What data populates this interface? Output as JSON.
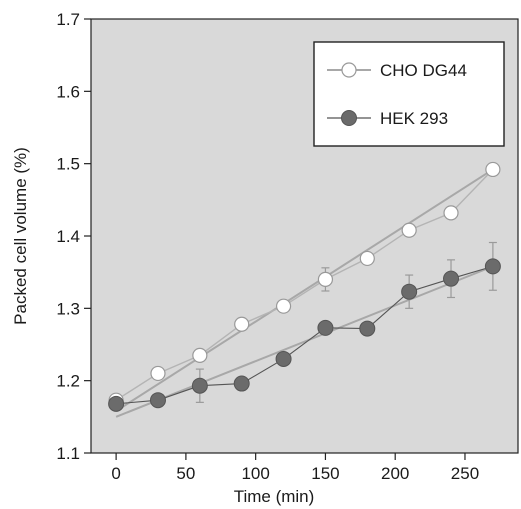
{
  "chart_data": {
    "type": "line",
    "xlabel": "Time (min)",
    "ylabel": "Packed cell volume (%)",
    "xlim": [
      -18,
      288
    ],
    "ylim": [
      1.1,
      1.7
    ],
    "x_ticks": [
      0,
      50,
      100,
      150,
      200,
      250
    ],
    "y_ticks": [
      1.1,
      1.2,
      1.3,
      1.4,
      1.5,
      1.6,
      1.7
    ],
    "x_tick_labels": [
      "0",
      "50",
      "100",
      "150",
      "200",
      "250"
    ],
    "y_tick_labels": [
      "1.1",
      "1.2",
      "1.3",
      "1.4",
      "1.5",
      "1.6",
      "1.7"
    ],
    "legend_position": "top-right",
    "plot_background": "#d9d9d9",
    "x": [
      0,
      30,
      60,
      90,
      120,
      150,
      180,
      210,
      240,
      270
    ],
    "series": [
      {
        "name": "CHO DG44",
        "marker": "open-circle",
        "color": "#ffffff",
        "values": [
          1.173,
          1.21,
          1.235,
          1.278,
          1.303,
          1.34,
          1.369,
          1.408,
          1.432,
          1.492
        ],
        "error": [
          0,
          0,
          0,
          0,
          0,
          0.016,
          0,
          0,
          0,
          0
        ],
        "fit": [
          1.158,
          1.492
        ]
      },
      {
        "name": "HEK 293",
        "marker": "filled-circle",
        "color": "#6b6b6b",
        "values": [
          1.168,
          1.173,
          1.193,
          1.196,
          1.23,
          1.273,
          1.272,
          1.323,
          1.341,
          1.358
        ],
        "error": [
          0,
          0,
          0.023,
          0,
          0,
          0,
          0,
          0.023,
          0.026,
          0.033
        ],
        "fit": [
          1.15,
          1.358
        ]
      }
    ]
  }
}
